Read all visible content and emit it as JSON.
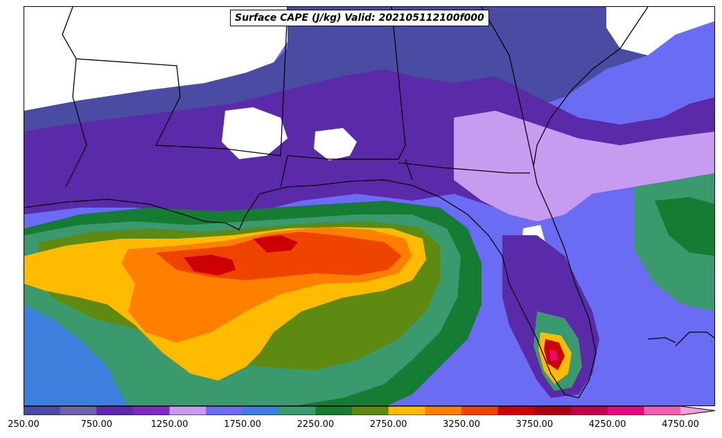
{
  "title": "Surface CAPE (J/kg) Valid: 202105112100f000",
  "colorbar": {
    "levels": [
      250,
      500,
      750,
      1000,
      1250,
      1500,
      1750,
      2000,
      2250,
      2500,
      2750,
      3000,
      3250,
      3500,
      3750,
      4000,
      4250,
      4500,
      4750
    ],
    "colors": [
      "#4a4ca4",
      "#6b64a6",
      "#5a2aa8",
      "#7a2cc4",
      "#c79bf0",
      "#6a6cf4",
      "#3e7edc",
      "#3a9a6e",
      "#167c34",
      "#5e8a12",
      "#ffbb00",
      "#ff8000",
      "#ee4400",
      "#cc0000",
      "#aa0014",
      "#c0004a",
      "#e8087c",
      "#f060b0",
      "#f8a0d8"
    ],
    "tick_labels": [
      "250.00",
      "750.00",
      "1250.00",
      "1750.00",
      "2250.00",
      "2750.00",
      "3250.00",
      "3750.00",
      "4250.00",
      "4750.00"
    ],
    "extend": "max"
  }
}
